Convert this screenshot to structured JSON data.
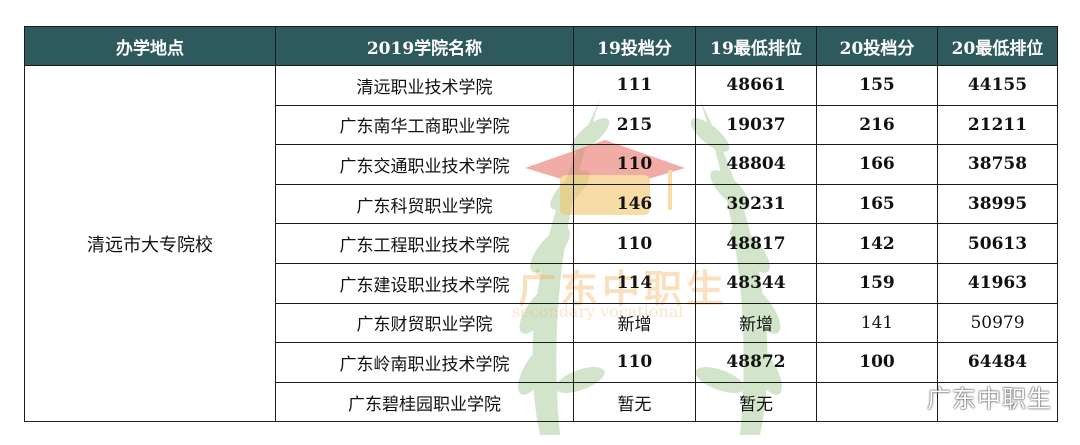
{
  "headers": [
    "办学地点",
    "2019学院名称",
    "19投档分",
    "19最低排位",
    "20投档分",
    "20最低排位"
  ],
  "location": "清远市大专院校",
  "rows": [
    {
      "college": "清远职业技术学院",
      "s19": "111",
      "r19": "48661",
      "s20": "155",
      "r20": "44155"
    },
    {
      "college": "广东南华工商职业学院",
      "s19": "215",
      "r19": "19037",
      "s20": "216",
      "r20": "21211"
    },
    {
      "college": "广东交通职业技术学院",
      "s19": "110",
      "r19": "48804",
      "s20": "166",
      "r20": "38758"
    },
    {
      "college": "广东科贸职业学院",
      "s19": "146",
      "r19": "39231",
      "s20": "165",
      "r20": "38995"
    },
    {
      "college": "广东工程职业技术学院",
      "s19": "110",
      "r19": "48817",
      "s20": "142",
      "r20": "50613"
    },
    {
      "college": "广东建设职业技术学院",
      "s19": "114",
      "r19": "48344",
      "s20": "159",
      "r20": "41963"
    },
    {
      "college": "广东财贸职业学院",
      "s19": "新增",
      "r19": "新增",
      "s20": "141",
      "r20": "50979"
    },
    {
      "college": "广东岭南职业技术学院",
      "s19": "110",
      "r19": "48872",
      "s20": "100",
      "r20": "64484"
    },
    {
      "college": "广东碧桂园职业学院",
      "s19": "暂无",
      "r19": "暂无",
      "s20": "",
      "r20": ""
    }
  ],
  "watermark": {
    "title": "广东中职生",
    "subtitle": "secondary vocational"
  },
  "source_tag": "广东中职生"
}
